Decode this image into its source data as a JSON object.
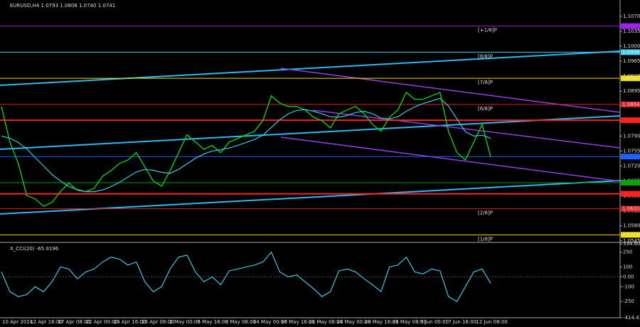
{
  "chart_data": [
    {
      "type": "line",
      "title": "EURUSD,H4 1.0793 1.0808 1.0740 1.0741",
      "ylim": [
        1.0543,
        1.1108
      ],
      "yticks": [
        {
          "value": 1.107,
          "label": "1.1070"
        },
        {
          "value": 1.1035,
          "label": "1.1035"
        },
        {
          "value": 1.1,
          "label": "1.1000"
        },
        {
          "value": 1.0965,
          "label": "1.0965"
        },
        {
          "value": 1.093,
          "label": "1.0930"
        },
        {
          "value": 1.0895,
          "label": "1.0895"
        },
        {
          "value": 1.086,
          "label": "1.0860"
        },
        {
          "value": 1.0825,
          "label": "1.0825"
        },
        {
          "value": 1.079,
          "label": "1.0790"
        },
        {
          "value": 1.0755,
          "label": "1.0755"
        },
        {
          "value": 1.072,
          "label": "1.0720"
        },
        {
          "value": 1.0685,
          "label": "1.0685"
        },
        {
          "value": 1.065,
          "label": "1.0650"
        },
        {
          "value": 1.0615,
          "label": "1.0615"
        },
        {
          "value": 1.058,
          "label": "1.0580"
        },
        {
          "value": 1.0545,
          "label": "1.0545"
        }
      ],
      "time_labels": [
        "10 Apr 2024",
        "12 Apr 16:00",
        "17 Apr 08:00",
        "22 Apr 00:00",
        "24 Apr 16:00",
        "29 Apr 08:00",
        "2 May 00:00",
        "6 May 16:00",
        "9 May 08:00",
        "14 May 00:00",
        "16 May 16:00",
        "21 May 08:00",
        "24 May 00:00",
        "28 May 16:00",
        "31 May 08:00",
        "5 Jun 00:00",
        "7 Jun 16:00",
        "12 Jun 08:00"
      ],
      "series": [
        {
          "color": "#00e000",
          "values": [
            1.0859,
            1.0776,
            1.0726,
            1.0651,
            1.0643,
            1.0626,
            1.0635,
            1.066,
            1.068,
            1.0663,
            1.066,
            1.0668,
            1.0696,
            1.0709,
            1.0726,
            1.0734,
            1.0751,
            1.0718,
            1.0685,
            1.0673,
            1.0709,
            1.0751,
            1.0793,
            1.0776,
            1.0759,
            1.0768,
            1.0751,
            1.0776,
            1.0784,
            1.0793,
            1.0801,
            1.0826,
            1.0884,
            1.0867,
            1.0859,
            1.0859,
            1.0851,
            1.0834,
            1.0826,
            1.0809,
            1.0842,
            1.0851,
            1.0859,
            1.0842,
            1.0817,
            1.0801,
            1.0834,
            1.0851,
            1.0892,
            1.0876,
            1.0876,
            1.0884,
            1.0892,
            1.0801,
            1.0751,
            1.0734,
            1.0776,
            1.0817,
            1.0741
          ]
        },
        {
          "color": "#3cc8e0",
          "values": [
            1.079,
            1.0785,
            1.0775,
            1.076,
            1.074,
            1.072,
            1.07,
            1.0685,
            1.0672,
            1.0665,
            1.066,
            1.066,
            1.0664,
            1.0672,
            1.0682,
            1.0694,
            1.0706,
            1.0712,
            1.071,
            1.0705,
            1.0703,
            1.0712,
            1.0725,
            1.0738,
            1.0748,
            1.0755,
            1.0758,
            1.0762,
            1.0768,
            1.0775,
            1.0782,
            1.0792,
            1.081,
            1.0828,
            1.0842,
            1.085,
            1.0852,
            1.0848,
            1.0842,
            1.0835,
            1.0834,
            1.0838,
            1.0845,
            1.0848,
            1.0842,
            1.0832,
            1.083,
            1.0835,
            1.0848,
            1.0858,
            1.0866,
            1.0872,
            1.0878,
            1.086,
            1.083,
            1.08,
            1.079,
            1.0792,
            1.0785
          ]
        }
      ],
      "levels": [
        {
          "value": 1.1047,
          "color": "#a020f0",
          "tag": "[+1/8]P"
        },
        {
          "value": 1.0986,
          "color": "#40d0f0",
          "tag": "[8/8]P",
          "label": "1.0986"
        },
        {
          "value": 1.0925,
          "color": "#f0e000",
          "tag": "[7/8]P",
          "label": "1.0925"
        },
        {
          "value": 1.0864,
          "color": "#e02020",
          "tag": "[6/8]P",
          "label": "1.0864"
        },
        {
          "value": 1.0827,
          "color": "#ff2020"
        },
        {
          "value": 1.0742,
          "color": "#2060ff"
        },
        {
          "value": 1.0681,
          "color": "#10a010"
        },
        {
          "value": 1.0655,
          "color": "#ff2020"
        },
        {
          "value": 1.062,
          "color": "#e02020",
          "tag": "[2/8]P",
          "label": "1.0620"
        },
        {
          "value": 1.0559,
          "color": "#f0e000",
          "tag": "[1/8]P",
          "label": "1.0559"
        }
      ]
    },
    {
      "type": "line",
      "title": "X_CCI(20) -65.9196",
      "ylim": [
        -414.4108,
        334.6005
      ],
      "yticks": [
        334.6005,
        250,
        100,
        {
          "value": 0,
          "label": "0.00"
        },
        -100,
        -250,
        -414.4108
      ],
      "series": [
        {
          "color": "#3cc8e0",
          "values": [
            50,
            -150,
            -200,
            -180,
            -100,
            -150,
            -50,
            100,
            80,
            -20,
            50,
            80,
            150,
            200,
            180,
            120,
            150,
            -50,
            -150,
            -100,
            80,
            200,
            220,
            50,
            -50,
            0,
            -80,
            60,
            80,
            100,
            120,
            150,
            250,
            50,
            0,
            20,
            -50,
            -120,
            -200,
            -150,
            60,
            80,
            50,
            -20,
            -80,
            -150,
            100,
            120,
            200,
            50,
            30,
            80,
            60,
            -200,
            -250,
            -100,
            50,
            80,
            -65.9196
          ]
        }
      ]
    }
  ]
}
